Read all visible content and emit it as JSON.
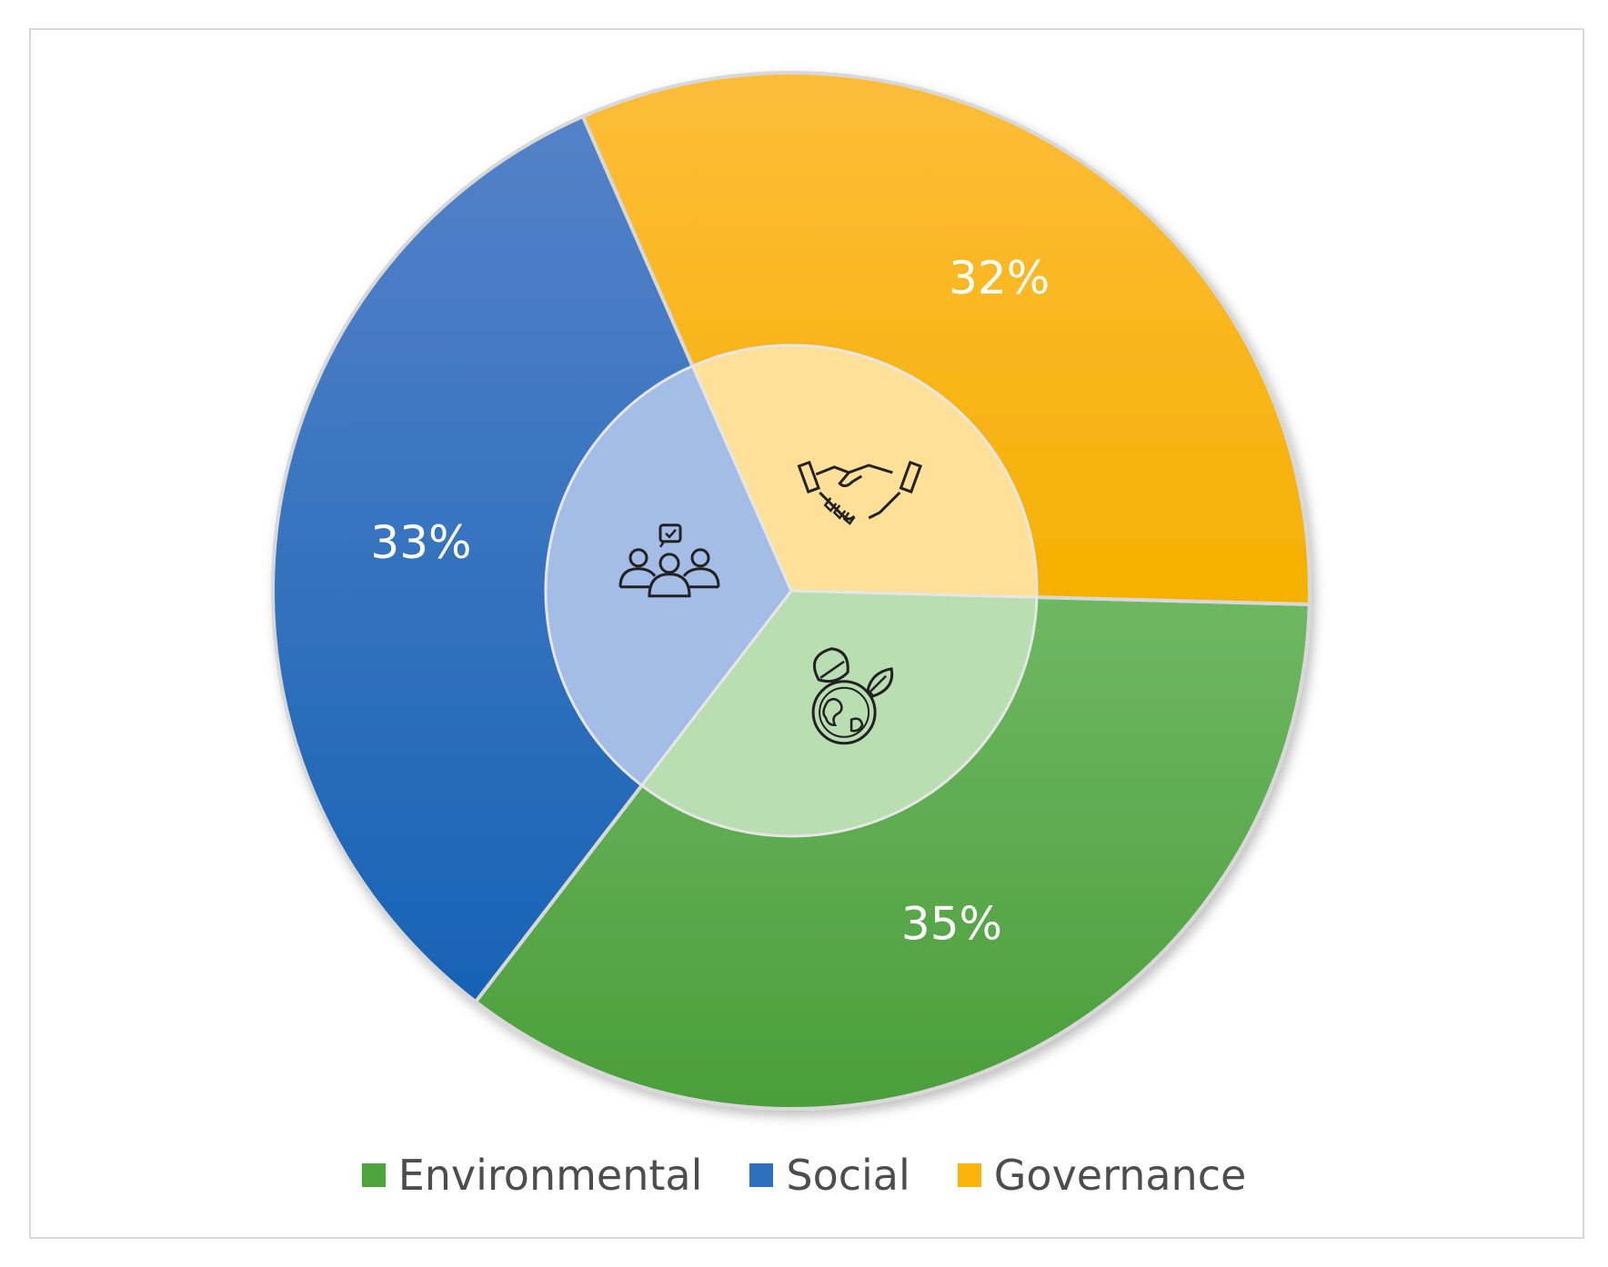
{
  "chart_data": {
    "type": "pie",
    "title": "",
    "slices": [
      {
        "label": "Environmental",
        "value": 35,
        "display": "35%",
        "color": "#4ea33d",
        "icon": "globe-leaves-icon"
      },
      {
        "label": "Social",
        "value": 33,
        "display": "33%",
        "color": "#2f6fc0",
        "icon": "people-group-icon"
      },
      {
        "label": "Governance",
        "value": 32,
        "display": "32%",
        "color": "#fdb40a",
        "icon": "handshake-icon"
      }
    ],
    "legend_position": "bottom",
    "inner_circle": true
  }
}
